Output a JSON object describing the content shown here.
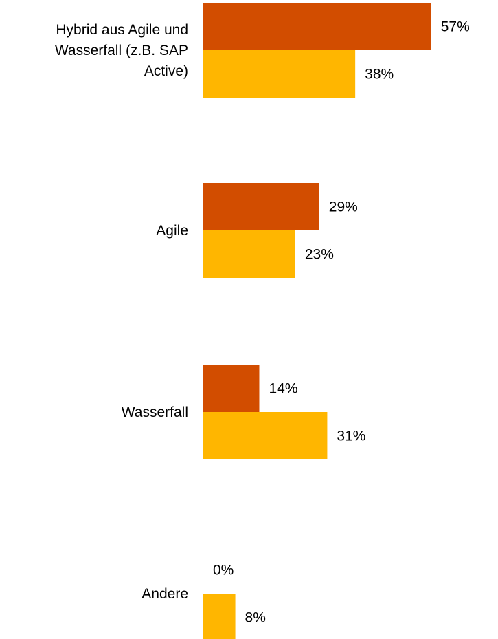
{
  "chart_data": {
    "type": "bar",
    "orientation": "horizontal",
    "categories": [
      [
        "Hybrid aus Agile und",
        "Wasserfall (z.B. SAP",
        "Active)"
      ],
      [
        "Agile"
      ],
      [
        "Wasserfall"
      ],
      [
        "Andere"
      ]
    ],
    "series": [
      {
        "color": "#D24D00",
        "values": [
          57,
          29,
          14,
          0
        ],
        "value_labels": [
          "57%",
          "29%",
          "14%",
          "0%"
        ]
      },
      {
        "color": "#FFB600",
        "values": [
          38,
          23,
          31,
          8
        ],
        "value_labels": [
          "38%",
          "23%",
          "31%",
          "8%"
        ]
      }
    ],
    "unit": "%",
    "xlim": [
      0,
      100
    ],
    "grid": false,
    "legend": "none"
  }
}
